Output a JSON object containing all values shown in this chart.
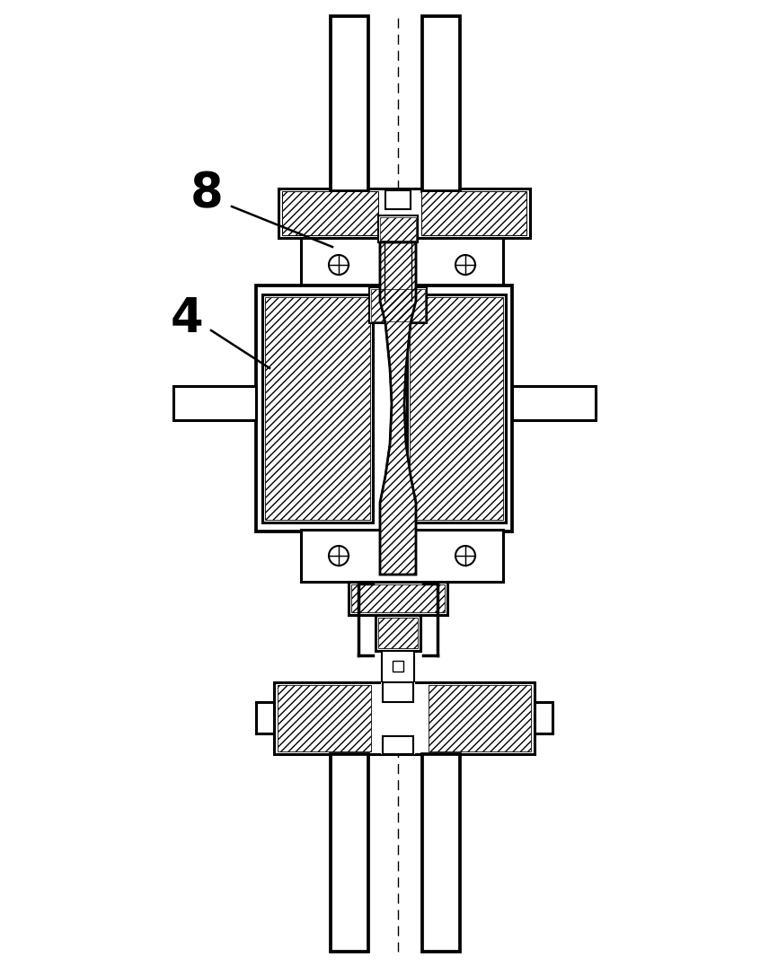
{
  "bg_color": "#ffffff",
  "lc": "#000000",
  "label_8": "8",
  "label_4": "4",
  "label_fontsize": 38,
  "fig_width": 8.56,
  "fig_height": 10.76,
  "dpi": 100,
  "lw": 2.2
}
